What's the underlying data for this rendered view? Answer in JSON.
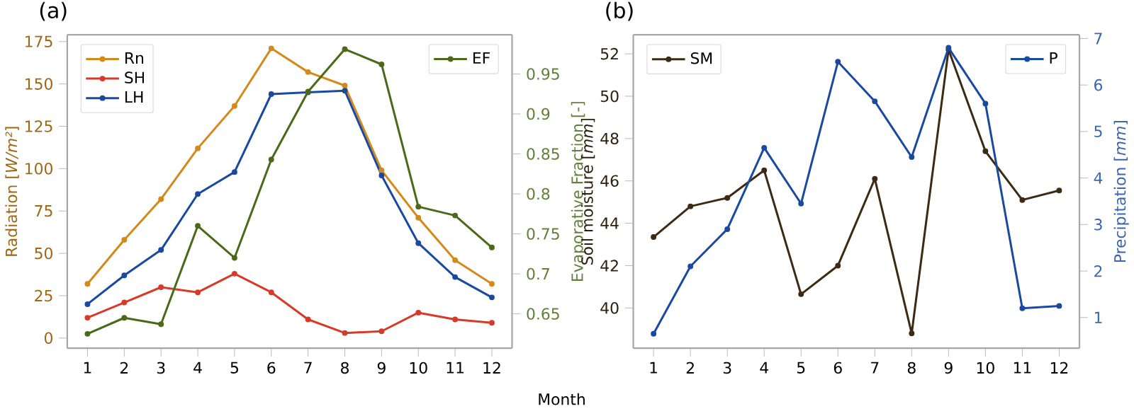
{
  "chart_data": [
    {
      "type": "line",
      "title": "(a)",
      "xlabel": "Month",
      "ylabel": "Radiation [*W/m²*]",
      "y2label": "Evaporative Fraction [-]",
      "x": [
        1,
        2,
        3,
        4,
        5,
        6,
        7,
        8,
        9,
        10,
        11,
        12
      ],
      "xlim": [
        0.45,
        12.55
      ],
      "xticks": [
        1,
        2,
        3,
        4,
        5,
        6,
        7,
        8,
        9,
        10,
        11,
        12
      ],
      "ylim": [
        -6,
        179
      ],
      "yticks": [
        0,
        25,
        50,
        75,
        100,
        125,
        150,
        175
      ],
      "y2lim": [
        0.607,
        0.999
      ],
      "y2ticks": [
        0.65,
        0.7,
        0.75,
        0.8,
        0.85,
        0.9,
        0.95
      ],
      "series": [
        {
          "name": "Rn",
          "color": "#d4891c",
          "values": [
            32,
            58,
            82,
            112,
            137,
            171,
            157,
            149,
            99,
            71,
            46,
            32
          ]
        },
        {
          "name": "SH",
          "color": "#d63b2a",
          "values": [
            12,
            21,
            30,
            27,
            38,
            27,
            11,
            3,
            4,
            15,
            11,
            9
          ]
        },
        {
          "name": "LH",
          "color": "#1a4aa0",
          "values": [
            20,
            37,
            52,
            85,
            98,
            144,
            145,
            146,
            96,
            56,
            36,
            24
          ]
        },
        {
          "name": "EF",
          "color": "#4a6a1a",
          "axis": "y2",
          "values": [
            0.625,
            0.645,
            0.637,
            0.76,
            0.72,
            0.843,
            0.928,
            0.981,
            0.962,
            0.784,
            0.773,
            0.733
          ]
        }
      ],
      "legend": "top left",
      "marker": "circle",
      "line_style": "solid",
      "grid": false
    },
    {
      "type": "line",
      "title": "(b)",
      "ylabel": "Soil moisture [*mm*]",
      "y2label": "Precipitation [*mm*]",
      "x": [
        1,
        2,
        3,
        4,
        5,
        6,
        7,
        8,
        9,
        10,
        11,
        12
      ],
      "xlim": [
        0.45,
        12.55
      ],
      "xticks": [
        1,
        2,
        3,
        4,
        5,
        6,
        7,
        8,
        9,
        10,
        11,
        12
      ],
      "ylim": [
        38.1,
        52.9
      ],
      "yticks": [
        40,
        42,
        44,
        46,
        48,
        50,
        52
      ],
      "y2lim": [
        0.34,
        7.08
      ],
      "y2ticks": [
        1,
        2,
        3,
        4,
        5,
        6,
        7
      ],
      "series": [
        {
          "name": "SM",
          "color": "#3d2a14",
          "values": [
            43.35,
            44.8,
            45.2,
            46.5,
            40.65,
            42,
            46.1,
            38.8,
            52.2,
            47.4,
            45.1,
            45.55
          ]
        },
        {
          "name": "P",
          "color": "#1a4aa0",
          "axis": "y2",
          "values": [
            0.65,
            2.1,
            2.9,
            4.65,
            3.45,
            6.5,
            5.65,
            4.45,
            6.8,
            5.6,
            1.2,
            1.25
          ]
        }
      ],
      "legend": "top left",
      "marker": "circle",
      "line_style": "solid",
      "grid": false
    }
  ]
}
